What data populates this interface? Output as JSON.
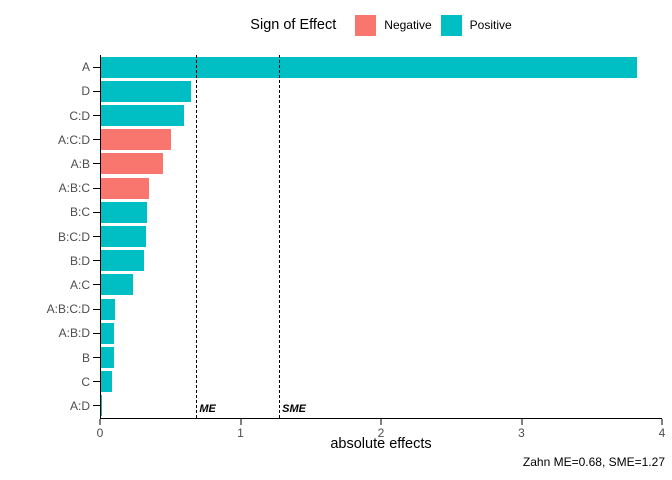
{
  "legend": {
    "title": "Sign of Effect",
    "items": [
      {
        "label": "Negative",
        "color": "#F8766D"
      },
      {
        "label": "Positive",
        "color": "#00BFC4"
      }
    ]
  },
  "chart_data": {
    "type": "bar",
    "orientation": "horizontal",
    "title": "",
    "categories": [
      "A",
      "D",
      "C:D",
      "A:C:D",
      "A:B",
      "A:B:C",
      "B:C",
      "B:C:D",
      "B:D",
      "A:C",
      "A:B:C:D",
      "A:B:D",
      "B",
      "C",
      "A:D"
    ],
    "values": [
      3.82,
      0.64,
      0.59,
      0.5,
      0.44,
      0.34,
      0.33,
      0.32,
      0.31,
      0.23,
      0.1,
      0.09,
      0.09,
      0.08,
      0.005
    ],
    "signs": [
      "Positive",
      "Positive",
      "Positive",
      "Negative",
      "Negative",
      "Negative",
      "Positive",
      "Positive",
      "Positive",
      "Positive",
      "Positive",
      "Positive",
      "Positive",
      "Positive",
      "Positive"
    ],
    "series_colors": {
      "Negative": "#F8766D",
      "Positive": "#00BFC4"
    },
    "xlabel": "absolute effects",
    "ylabel": "",
    "xlim": [
      0,
      4
    ],
    "xticks": [
      "0",
      "1",
      "2",
      "3",
      "4"
    ],
    "grid": false,
    "legend_position": "top",
    "reference_lines": [
      {
        "label": "ME",
        "value": 0.68,
        "style": "dashed"
      },
      {
        "label": "SME",
        "value": 1.27,
        "style": "dashed"
      }
    ],
    "caption": "Zahn ME=0.68, SME=1.27"
  }
}
